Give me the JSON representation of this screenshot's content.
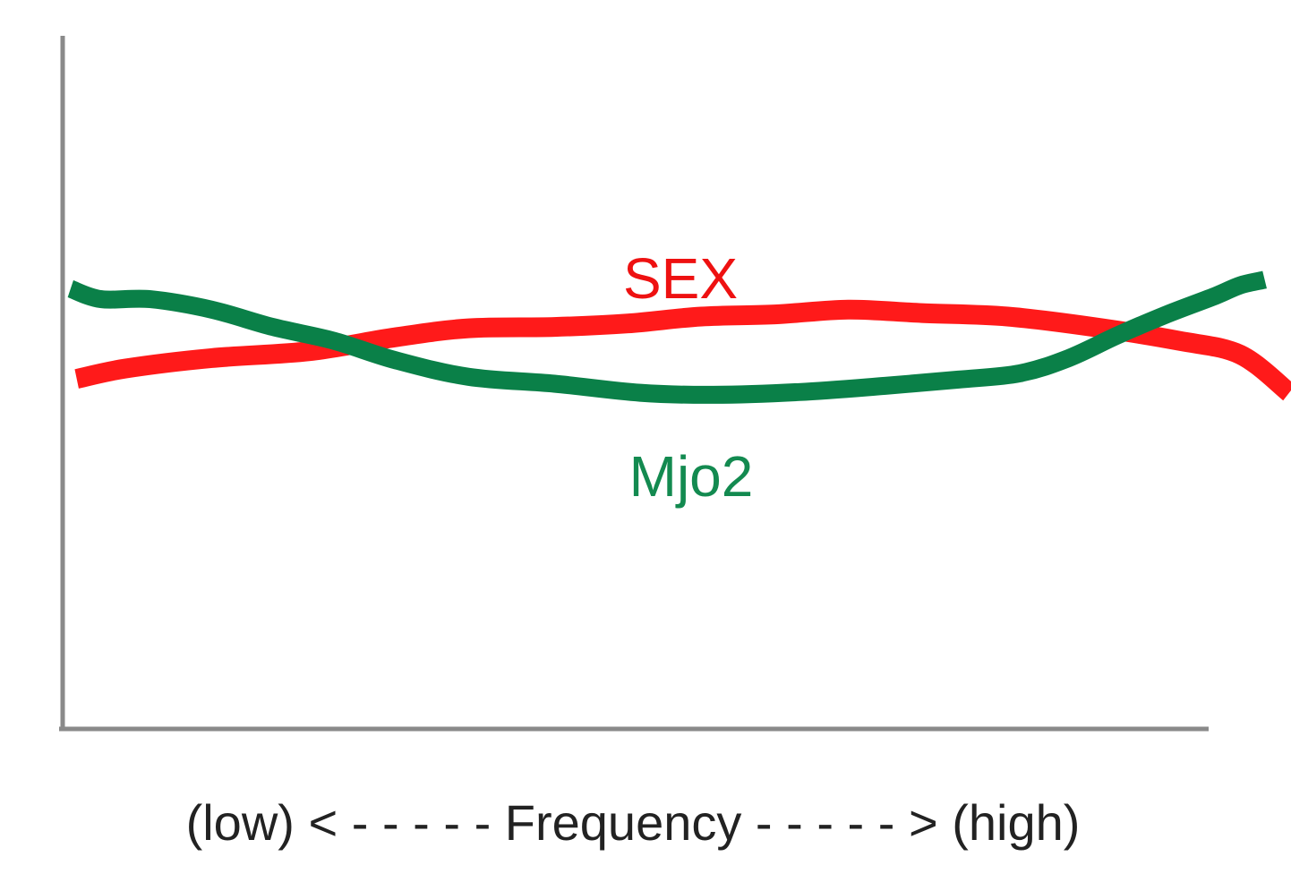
{
  "chart_data": {
    "type": "line",
    "title": "",
    "xlabel": "(low) < - - - - - Frequency - - - - - > (high)",
    "ylabel": "",
    "xlim": [
      0,
      100
    ],
    "ylim": [
      0,
      100
    ],
    "grid": false,
    "legend": "inline labels",
    "series": [
      {
        "name": "SEX",
        "color": "#ff1a1a",
        "label_color": "#ee1111",
        "points": [
          [
            1,
            50.5
          ],
          [
            5,
            52
          ],
          [
            12,
            53.5
          ],
          [
            20,
            54.5
          ],
          [
            27,
            56.5
          ],
          [
            33,
            57.8
          ],
          [
            40,
            58
          ],
          [
            46,
            58.5
          ],
          [
            52,
            59.5
          ],
          [
            58,
            59.8
          ],
          [
            64,
            60.5
          ],
          [
            70,
            60
          ],
          [
            77,
            59.5
          ],
          [
            84,
            58
          ],
          [
            91,
            56
          ],
          [
            96,
            54
          ],
          [
            100,
            48.5
          ]
        ]
      },
      {
        "name": "Mjo2",
        "color": "#0a8048",
        "label_color": "#138a50",
        "points": [
          [
            0.5,
            63.5
          ],
          [
            3,
            62
          ],
          [
            7,
            62
          ],
          [
            12,
            60.5
          ],
          [
            17,
            58
          ],
          [
            22,
            56
          ],
          [
            27,
            53.2
          ],
          [
            33,
            50.8
          ],
          [
            40,
            49.8
          ],
          [
            47,
            48.5
          ],
          [
            53,
            48.2
          ],
          [
            60,
            48.6
          ],
          [
            67,
            49.5
          ],
          [
            73,
            50.4
          ],
          [
            78,
            51.3
          ],
          [
            82,
            53.5
          ],
          [
            86,
            56.8
          ],
          [
            90,
            59.8
          ],
          [
            94,
            62.5
          ],
          [
            96,
            64
          ],
          [
            98,
            64.8
          ]
        ]
      }
    ]
  }
}
